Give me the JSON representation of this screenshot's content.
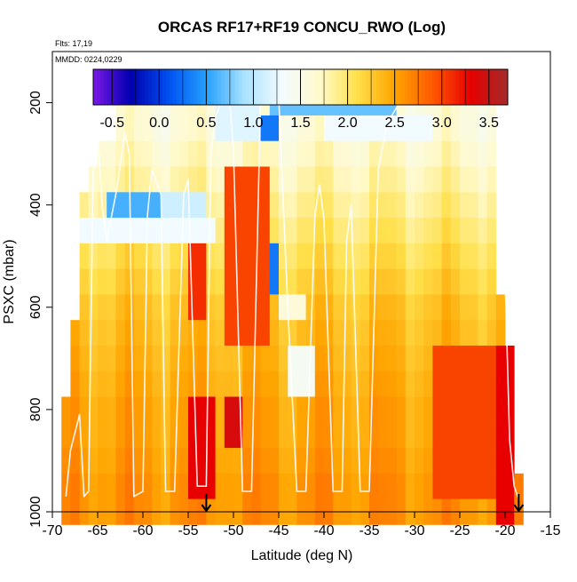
{
  "chart_data": {
    "type": "heatmap",
    "title": "ORCAS RF17+RF19 CONCU_RWO (Log)",
    "flights_label": "Flts: 17,19",
    "date_label": "MMDD: 0224,0229",
    "xlabel": "Latitude (deg N)",
    "ylabel": "PSXC (mbar)",
    "xlim": [
      -70,
      -15
    ],
    "ylim": [
      1000,
      100
    ],
    "xticks": [
      "-70",
      "-65",
      "-60",
      "-55",
      "-50",
      "-45",
      "-40",
      "-35",
      "-30",
      "-25",
      "-20",
      "-15"
    ],
    "yticks": [
      "200",
      "400",
      "600",
      "800",
      "1000"
    ],
    "colorbar": {
      "min": -0.7,
      "max": 3.7,
      "ticks": [
        "-0.5",
        "0.0",
        "0.5",
        "1.0",
        "1.5",
        "2.0",
        "2.5",
        "3.0",
        "3.5"
      ],
      "colors": [
        "#7a17e6",
        "#0000b0",
        "#0050f0",
        "#25a0ff",
        "#a8e2ff",
        "#f2fbff",
        "#fffacc",
        "#ffe04a",
        "#ffa400",
        "#ff5a00",
        "#e80000",
        "#a52b2b"
      ]
    },
    "pressure_levels": [
      200,
      250,
      300,
      350,
      400,
      450,
      500,
      550,
      600,
      650,
      700,
      750,
      800,
      850,
      900,
      950,
      1000
    ],
    "latitude_extent_by_level": [
      [
        -63,
        -21
      ],
      [
        -63,
        -21
      ],
      [
        -65,
        -21
      ],
      [
        -66,
        -21
      ],
      [
        -67,
        -21
      ],
      [
        -67,
        -21
      ],
      [
        -67,
        -21
      ],
      [
        -67,
        -21
      ],
      [
        -67,
        -20
      ],
      [
        -68,
        -20
      ],
      [
        -68,
        -19
      ],
      [
        -68,
        -19
      ],
      [
        -69,
        -19
      ],
      [
        -69,
        -19
      ],
      [
        -69,
        -19
      ],
      [
        -69,
        -18
      ],
      [
        -69,
        -18
      ]
    ],
    "background_log_values": [
      1.6,
      1.6,
      1.7,
      1.8,
      1.9,
      2.0,
      2.1,
      2.2,
      2.3,
      2.35,
      2.4,
      2.45,
      2.5,
      2.5,
      2.55,
      2.6,
      2.6
    ],
    "anomalies": [
      {
        "lat": [
          -46,
          -32
        ],
        "p": [
          175,
          240
        ],
        "value": 0.7
      },
      {
        "lat": [
          -47,
          -45
        ],
        "p": [
          240,
          275
        ],
        "value": 0.3
      },
      {
        "lat": [
          -52,
          -47
        ],
        "p": [
          200,
          260
        ],
        "value": 1.2
      },
      {
        "lat": [
          -40,
          -28
        ],
        "p": [
          240,
          290
        ],
        "value": 1.3
      },
      {
        "lat": [
          -64,
          -58
        ],
        "p": [
          360,
          420
        ],
        "value": 0.6
      },
      {
        "lat": [
          -58,
          -53
        ],
        "p": [
          380,
          440
        ],
        "value": 1.1
      },
      {
        "lat": [
          -67,
          -52
        ],
        "p": [
          430,
          480
        ],
        "value": 1.3
      },
      {
        "lat": [
          -51,
          -46
        ],
        "p": [
          320,
          650
        ],
        "value": 3.0
      },
      {
        "lat": [
          -55,
          -53
        ],
        "p": [
          500,
          600
        ],
        "value": 3.1
      },
      {
        "lat": [
          -46,
          -45
        ],
        "p": [
          480,
          580
        ],
        "value": 0.3
      },
      {
        "lat": [
          -45,
          -42
        ],
        "p": [
          560,
          620
        ],
        "value": 1.6
      },
      {
        "lat": [
          -44,
          -41
        ],
        "p": [
          680,
          760
        ],
        "value": 1.4
      },
      {
        "lat": [
          -55,
          -52
        ],
        "p": [
          780,
          950
        ],
        "value": 3.3
      },
      {
        "lat": [
          -51,
          -49
        ],
        "p": [
          780,
          850
        ],
        "value": 3.4
      },
      {
        "lat": [
          -28,
          -19
        ],
        "p": [
          700,
          950
        ],
        "value": 3.0
      },
      {
        "lat": [
          -21,
          -19
        ],
        "p": [
          700,
          1000
        ],
        "value": 3.3
      }
    ],
    "flight_track_lat": [
      -68.5,
      -68,
      -67,
      -66.5,
      -66,
      -65.5,
      -65,
      -64.5,
      -64,
      -63,
      -62,
      -61.5,
      -61,
      -60,
      -59.5,
      -59,
      -58,
      -57.5,
      -56.5,
      -55.5,
      -55,
      -54,
      -53,
      -52.5,
      -52,
      -51,
      -50.5,
      -50,
      -49,
      -48,
      -47,
      -46,
      -45.5,
      -45,
      -44,
      -43,
      -42,
      -41,
      -40.5,
      -40,
      -39,
      -38,
      -37.5,
      -37,
      -36,
      -35,
      -34,
      -33,
      -31,
      -28,
      -25,
      -22,
      -21,
      -20.5,
      -20,
      -19.5,
      -19,
      -18.5
    ],
    "flight_track_p": [
      970,
      880,
      810,
      970,
      960,
      340,
      260,
      400,
      470,
      380,
      260,
      300,
      970,
      960,
      420,
      330,
      380,
      960,
      960,
      380,
      350,
      950,
      950,
      300,
      230,
      180,
      180,
      290,
      960,
      960,
      190,
      180,
      180,
      190,
      600,
      960,
      960,
      420,
      360,
      430,
      960,
      960,
      470,
      400,
      960,
      960,
      330,
      240,
      180,
      180,
      180,
      180,
      180,
      330,
      540,
      860,
      950,
      975
    ],
    "markers_lat": [
      "-53",
      "-18.5"
    ]
  }
}
